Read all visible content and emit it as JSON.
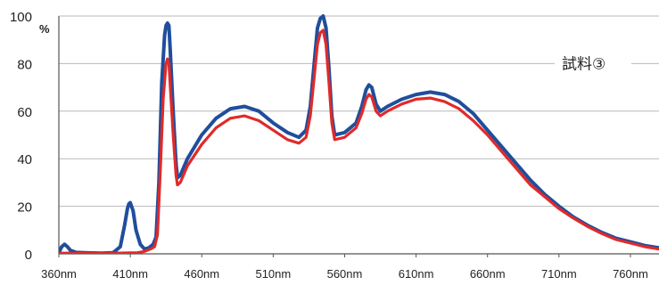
{
  "chart_data": {
    "type": "line",
    "title": "",
    "xlabel": "",
    "ylabel": "",
    "y_unit": "%",
    "xlim": [
      360,
      780
    ],
    "ylim": [
      0,
      100
    ],
    "grid": true,
    "x_ticks": [
      {
        "value": 360,
        "label": "360nm"
      },
      {
        "value": 410,
        "label": "410nm"
      },
      {
        "value": 460,
        "label": "460nm"
      },
      {
        "value": 510,
        "label": "510nm"
      },
      {
        "value": 560,
        "label": "560nm"
      },
      {
        "value": 610,
        "label": "610nm"
      },
      {
        "value": 660,
        "label": "660nm"
      },
      {
        "value": 710,
        "label": "710nm"
      },
      {
        "value": 760,
        "label": "760nm"
      }
    ],
    "y_ticks": [
      {
        "value": 0,
        "label": "0"
      },
      {
        "value": 20,
        "label": "20"
      },
      {
        "value": 40,
        "label": "40"
      },
      {
        "value": 60,
        "label": "60"
      },
      {
        "value": 80,
        "label": "80"
      },
      {
        "value": 100,
        "label": "100"
      }
    ],
    "annotation": "試料③",
    "series": [
      {
        "color": "#1f4e9c",
        "points": [
          [
            360,
            0.5
          ],
          [
            362,
            3
          ],
          [
            364,
            4
          ],
          [
            366,
            3
          ],
          [
            368,
            1.5
          ],
          [
            372,
            0.6
          ],
          [
            380,
            0.4
          ],
          [
            390,
            0.3
          ],
          [
            398,
            0.5
          ],
          [
            403,
            3
          ],
          [
            406,
            12
          ],
          [
            408,
            19
          ],
          [
            409,
            21
          ],
          [
            410,
            21.5
          ],
          [
            412,
            18
          ],
          [
            414,
            10
          ],
          [
            417,
            4
          ],
          [
            420,
            2
          ],
          [
            423,
            2.5
          ],
          [
            426,
            4
          ],
          [
            428,
            7
          ],
          [
            430,
            30
          ],
          [
            432,
            72
          ],
          [
            434,
            92
          ],
          [
            435,
            96
          ],
          [
            436,
            97
          ],
          [
            437,
            96
          ],
          [
            438,
            85
          ],
          [
            440,
            60
          ],
          [
            442,
            38
          ],
          [
            443,
            32
          ],
          [
            445,
            33
          ],
          [
            450,
            40
          ],
          [
            460,
            50
          ],
          [
            470,
            57
          ],
          [
            480,
            61
          ],
          [
            490,
            62
          ],
          [
            500,
            60
          ],
          [
            510,
            55
          ],
          [
            520,
            51
          ],
          [
            528,
            49
          ],
          [
            533,
            52
          ],
          [
            536,
            62
          ],
          [
            539,
            82
          ],
          [
            541,
            95
          ],
          [
            543,
            99
          ],
          [
            545,
            100
          ],
          [
            547,
            95
          ],
          [
            549,
            78
          ],
          [
            551,
            58
          ],
          [
            553,
            50
          ],
          [
            560,
            51
          ],
          [
            568,
            55
          ],
          [
            572,
            62
          ],
          [
            575,
            69
          ],
          [
            577,
            71
          ],
          [
            579,
            70
          ],
          [
            582,
            63
          ],
          [
            585,
            60
          ],
          [
            590,
            62
          ],
          [
            600,
            65
          ],
          [
            610,
            67
          ],
          [
            620,
            68
          ],
          [
            630,
            67
          ],
          [
            640,
            64
          ],
          [
            650,
            59
          ],
          [
            660,
            52
          ],
          [
            670,
            45
          ],
          [
            680,
            38
          ],
          [
            690,
            31
          ],
          [
            700,
            25
          ],
          [
            710,
            20
          ],
          [
            720,
            15.5
          ],
          [
            730,
            12
          ],
          [
            740,
            9
          ],
          [
            750,
            6.5
          ],
          [
            760,
            5
          ],
          [
            770,
            3.5
          ],
          [
            780,
            2.5
          ]
        ]
      },
      {
        "color": "#e02a2a",
        "points": [
          [
            360,
            0.3
          ],
          [
            370,
            0.3
          ],
          [
            380,
            0.3
          ],
          [
            390,
            0.3
          ],
          [
            400,
            0.3
          ],
          [
            410,
            0.4
          ],
          [
            415,
            0.5
          ],
          [
            420,
            1
          ],
          [
            424,
            2
          ],
          [
            427,
            3
          ],
          [
            429,
            8
          ],
          [
            431,
            35
          ],
          [
            433,
            65
          ],
          [
            435,
            80
          ],
          [
            436,
            82
          ],
          [
            437,
            80
          ],
          [
            438,
            70
          ],
          [
            440,
            50
          ],
          [
            442,
            33
          ],
          [
            443,
            29
          ],
          [
            445,
            30
          ],
          [
            450,
            37
          ],
          [
            460,
            46
          ],
          [
            470,
            53
          ],
          [
            480,
            57
          ],
          [
            490,
            58
          ],
          [
            500,
            56
          ],
          [
            510,
            52
          ],
          [
            520,
            48
          ],
          [
            528,
            46.5
          ],
          [
            533,
            49
          ],
          [
            536,
            58
          ],
          [
            539,
            76
          ],
          [
            541,
            88
          ],
          [
            543,
            93
          ],
          [
            545,
            94
          ],
          [
            547,
            88
          ],
          [
            549,
            72
          ],
          [
            551,
            55
          ],
          [
            553,
            48
          ],
          [
            560,
            49
          ],
          [
            568,
            53
          ],
          [
            572,
            59
          ],
          [
            575,
            65
          ],
          [
            577,
            67
          ],
          [
            579,
            66
          ],
          [
            582,
            60
          ],
          [
            585,
            58
          ],
          [
            590,
            60
          ],
          [
            600,
            63
          ],
          [
            610,
            65
          ],
          [
            620,
            65.5
          ],
          [
            630,
            64
          ],
          [
            640,
            61
          ],
          [
            650,
            56
          ],
          [
            660,
            50
          ],
          [
            670,
            43
          ],
          [
            680,
            36
          ],
          [
            690,
            29
          ],
          [
            700,
            24
          ],
          [
            710,
            19
          ],
          [
            720,
            15
          ],
          [
            730,
            11.5
          ],
          [
            740,
            8.5
          ],
          [
            750,
            6
          ],
          [
            760,
            4.5
          ],
          [
            770,
            3
          ],
          [
            780,
            2
          ]
        ]
      }
    ]
  }
}
